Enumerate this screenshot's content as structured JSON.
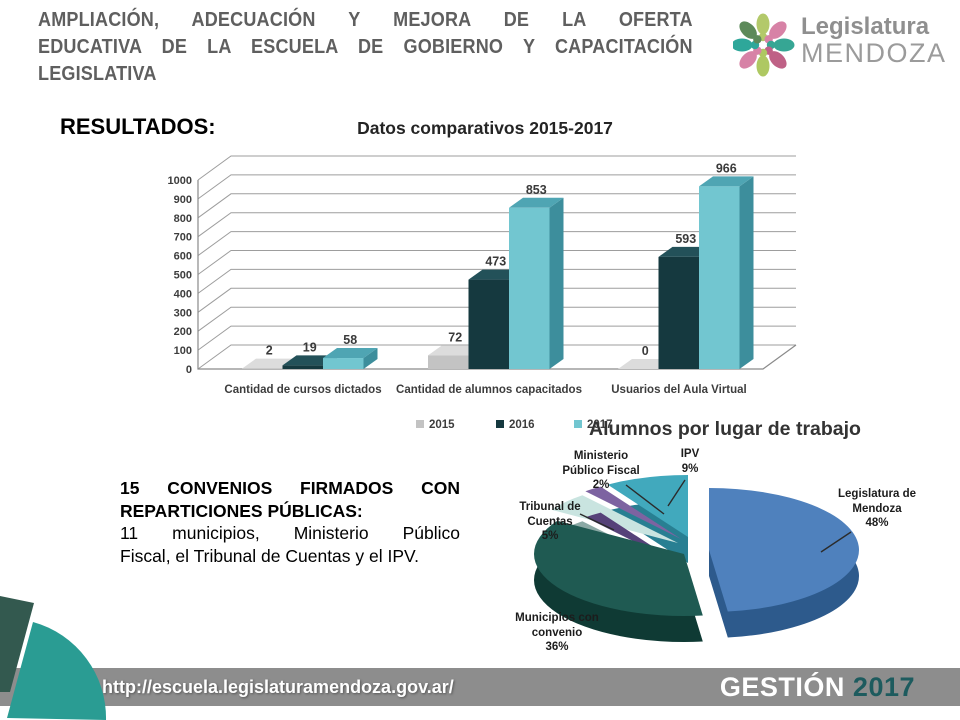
{
  "slide": {
    "title_line1": "AMPLIACIÓN, ADECUACIÓN Y MEJORA DE LA OFERTA",
    "title_line2": "EDUCATIVA DE LA ESCUELA DE GOBIERNO Y CAPACITACIÓN",
    "title_line3": "LEGISLATIVA",
    "section_heading": "RESULTADOS:"
  },
  "logo": {
    "name": "Legislatura",
    "region": "MENDOZA",
    "petal_colors": [
      "#b3c96a",
      "#d782a6",
      "#36a694",
      "#bf6186",
      "#aec862",
      "#d782a6",
      "#2ea79a",
      "#5d8a5a"
    ]
  },
  "chart_data": [
    {
      "type": "bar",
      "title": "Datos comparativos 2015-2017",
      "categories": [
        "Cantidad de cursos dictados",
        "Cantidad de alumnos capacitados",
        "Usuarios del Aula Virtual"
      ],
      "series": [
        {
          "name": "2015",
          "values": [
            2,
            72,
            0
          ],
          "color": "#c3c3c3",
          "top": "#dcdcdc",
          "side": "#9e9e9e"
        },
        {
          "name": "2016",
          "values": [
            19,
            473,
            593
          ],
          "color": "#15393f",
          "top": "#235159",
          "side": "#0d272c"
        },
        {
          "name": "2017",
          "values": [
            58,
            853,
            966
          ],
          "color": "#72c6d0",
          "top": "#4fa5b3",
          "side": "#3d8e9c"
        }
      ],
      "ylim": [
        0,
        1000
      ],
      "ytick_step": 100,
      "grid": true,
      "legend_position": "bottom"
    },
    {
      "type": "pie",
      "title": "Alumnos por lugar de trabajo",
      "slices": [
        {
          "label": "Legislatura de Mendoza",
          "label_lines": [
            "Legislatura de",
            "Mendoza"
          ],
          "pct": 48,
          "pct_label": "48%",
          "color": "#4f81bd",
          "side": "#2d5a8c"
        },
        {
          "label": "Municipios con convenio",
          "label_lines": [
            "Municipios con",
            "convenio"
          ],
          "pct": 36,
          "pct_label": "36%",
          "color": "#1f5a52",
          "side": "#0f3a34"
        },
        {
          "label": "Tribunal de Cuentas",
          "label_lines": [
            "Tribunal de",
            "Cuentas"
          ],
          "pct": 5,
          "pct_label": "5%",
          "color": "#c9e4e0",
          "side": "#8ba9a5"
        },
        {
          "label": "Ministerio Público Fiscal",
          "label_lines": [
            "Ministerio",
            "Público Fiscal"
          ],
          "pct": 2,
          "pct_label": "2%",
          "color": "#7d63a1",
          "side": "#564279"
        },
        {
          "label": "IPV",
          "label_lines": [
            "IPV"
          ],
          "pct": 9,
          "pct_label": "9%",
          "color": "#41a9bd",
          "side": "#287f92"
        }
      ]
    }
  ],
  "convenios": {
    "line1": "15 CONVENIOS FIRMADOS CON",
    "line2": "REPARTICIONES PÚBLICAS:",
    "line3": "11 municipios, Ministerio Público",
    "line4": "Fiscal, el Tribunal de Cuentas y el IPV."
  },
  "footer": {
    "url": "http://escuela.legislaturamendoza.gov.ar/",
    "gestion_label": "GESTIÓN",
    "gestion_year": "2017",
    "year_color": "#1d5b5e",
    "bar_color": "#8d8d8d",
    "decor_teal": "#2a9c93",
    "decor_dark": "#33594f"
  }
}
